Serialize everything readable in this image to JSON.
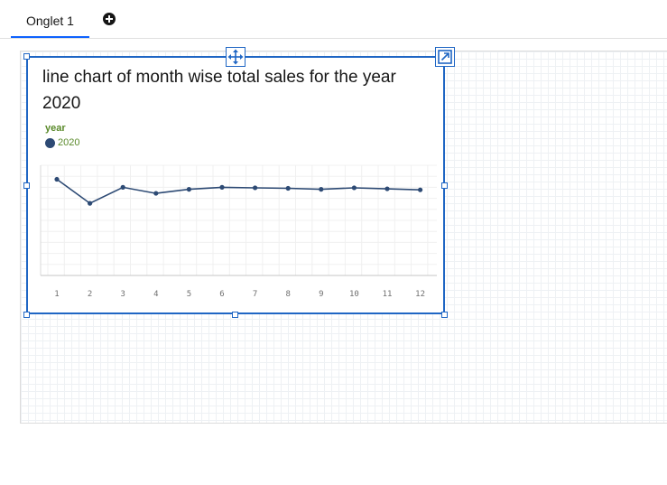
{
  "tabs": [
    {
      "label": "Onglet 1"
    }
  ],
  "add_tab_icon": "plus-circle-icon",
  "widget": {
    "title": "line chart of month wise total sales for the year 2020",
    "legend_title": "year",
    "legend_items": [
      {
        "label": "2020",
        "color": "#2d4a74"
      }
    ],
    "move_icon": "move-arrows-icon",
    "expand_icon": "expand-icon"
  },
  "colors": {
    "accent": "#1f66c4",
    "tab_underline": "#0f62fe",
    "series": "#2d4a74",
    "legend_text": "#5a8a2a"
  },
  "chart_data": {
    "type": "line",
    "title": "line chart of month wise total sales for the year 2020",
    "legend": {
      "title": "year",
      "placement": "top-left"
    },
    "x": [
      1,
      2,
      3,
      4,
      5,
      6,
      7,
      8,
      9,
      10,
      11,
      12
    ],
    "series": [
      {
        "name": "2020",
        "values": [
          96,
          72,
          88,
          82,
          86,
          88,
          87.5,
          87,
          86,
          87.5,
          86.5,
          85.5
        ]
      }
    ],
    "xlabel": "",
    "ylabel": "",
    "ylim": [
      0,
      110
    ],
    "y_tick_labels_visible": false,
    "grid": true
  }
}
